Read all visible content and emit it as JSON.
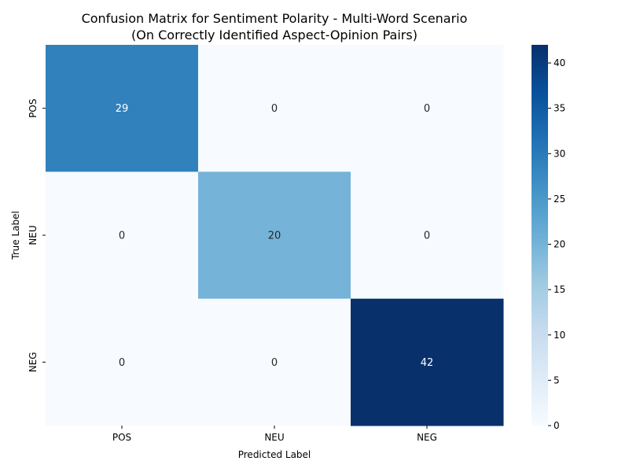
{
  "chart_data": {
    "type": "heatmap",
    "title_line1": "Confusion Matrix for Sentiment Polarity - Multi-Word Scenario",
    "title_line2": "(On Correctly Identified Aspect-Opinion Pairs)",
    "xlabel": "Predicted Label",
    "ylabel": "True Label",
    "x_categories": [
      "POS",
      "NEU",
      "NEG"
    ],
    "y_categories": [
      "POS",
      "NEU",
      "NEG"
    ],
    "values": [
      [
        29,
        0,
        0
      ],
      [
        0,
        20,
        0
      ],
      [
        0,
        0,
        42
      ]
    ],
    "colorbar": {
      "min": 0,
      "max": 42,
      "ticks": [
        0,
        5,
        10,
        15,
        20,
        25,
        30,
        35,
        40
      ]
    },
    "colormap": "Blues",
    "annotations": true
  }
}
